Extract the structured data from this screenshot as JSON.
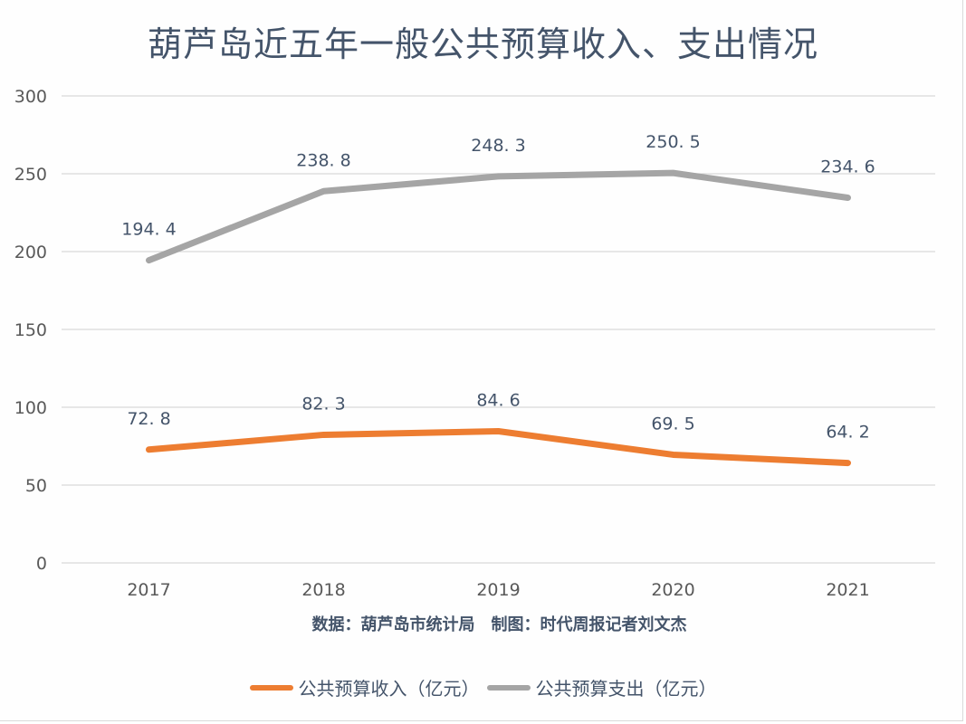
{
  "chart_data": {
    "type": "line",
    "title": "葫芦岛近五年一般公共预算收入、支出情况",
    "xlabel": "",
    "ylabel": "",
    "categories": [
      "2017",
      "2018",
      "2019",
      "2020",
      "2021"
    ],
    "ylim": [
      0,
      300
    ],
    "yticks": [
      0,
      50,
      100,
      150,
      200,
      250,
      300
    ],
    "grid": true,
    "legend_position": "bottom",
    "series": [
      {
        "name": "公共预算收入（亿元）",
        "color": "#ed7d31",
        "values": [
          72.8,
          82.3,
          84.6,
          69.5,
          64.2
        ],
        "labels": [
          "72. 8",
          "82. 3",
          "84. 6",
          "69. 5",
          "64. 2"
        ]
      },
      {
        "name": "公共预算支出（亿元）",
        "color": "#a5a5a5",
        "values": [
          194.4,
          238.8,
          248.3,
          250.5,
          234.6
        ],
        "labels": [
          "194. 4",
          "238. 8",
          "248. 3",
          "250. 5",
          "234. 6"
        ]
      }
    ],
    "source_note": "数据：葫芦岛市统计局　制图：时代周报记者刘文杰"
  }
}
